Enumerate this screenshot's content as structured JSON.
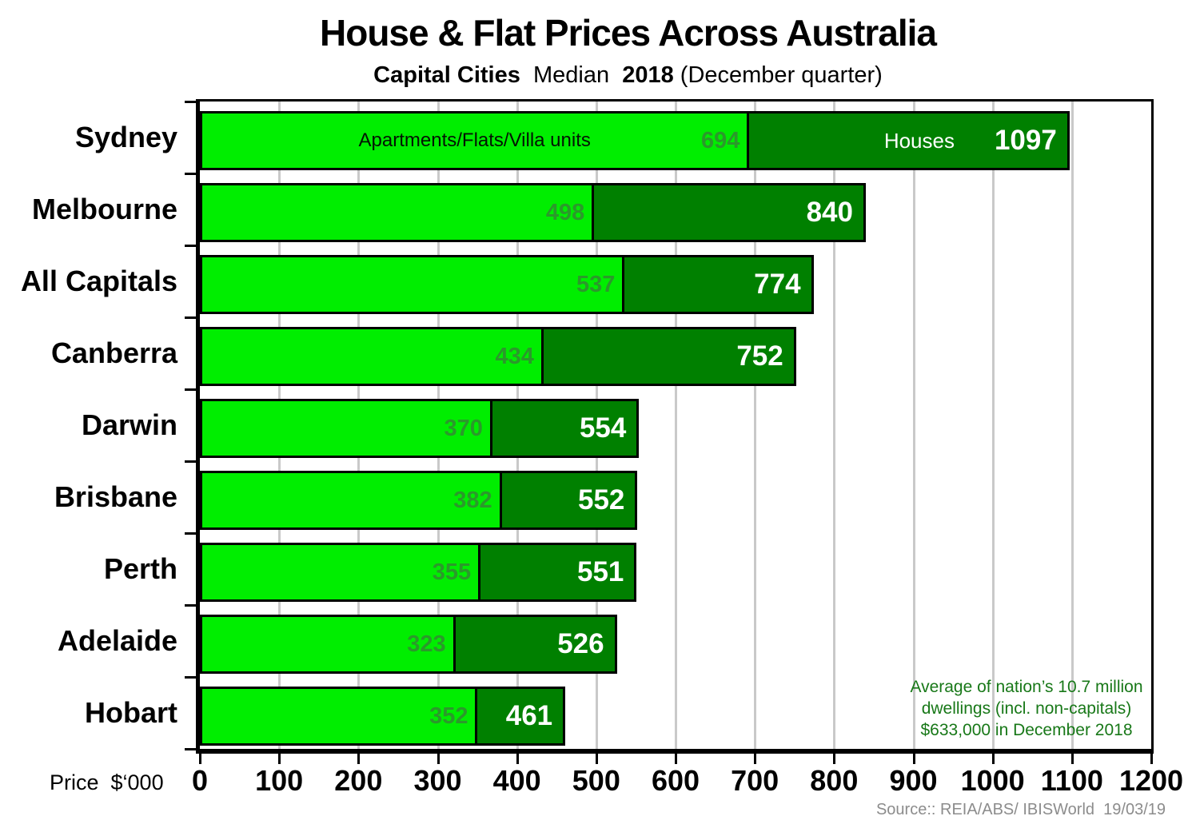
{
  "header": {
    "title": "House & Flat Prices Across Australia",
    "subtitle_parts": [
      {
        "text": "Capital Cities",
        "bold": true
      },
      {
        "text": "  Median  ",
        "bold": false
      },
      {
        "text": "2018",
        "bold": true
      },
      {
        "text": " (December quarter)",
        "bold": false
      }
    ]
  },
  "chart_data": {
    "type": "bar",
    "orientation": "horizontal",
    "title": "House & Flat Prices Across Australia",
    "subtitle": "Capital Cities  Median  2018 (December quarter)",
    "categories": [
      "Sydney",
      "Melbourne",
      "All Capitals",
      "Canberra",
      "Darwin",
      "Brisbane",
      "Perth",
      "Adelaide",
      "Hobart"
    ],
    "series": [
      {
        "name": "Apartments/Flats/Villa units",
        "values": [
          694,
          498,
          537,
          434,
          370,
          382,
          355,
          323,
          352
        ],
        "color": "#00EE00",
        "value_label_color": "#2B992B",
        "name_label_color": "#041404"
      },
      {
        "name": "Houses",
        "values": [
          1097,
          840,
          774,
          752,
          554,
          552,
          551,
          526,
          461
        ],
        "color": "#008000",
        "value_label_color": "#FFFFFF",
        "name_label_color": "#FFFFFF"
      }
    ],
    "xlim": [
      0,
      1200
    ],
    "x_ticks": [
      0,
      100,
      200,
      300,
      400,
      500,
      600,
      700,
      800,
      900,
      1000,
      1100,
      1200
    ],
    "xlabel": "Price  $‘000",
    "grid": "vertical",
    "gridline_color": "#C9C9C9",
    "bar_border_color": "#000000",
    "legend_position": "inside-first-bar"
  },
  "annotation": {
    "lines": [
      "Average of nation’s 10.7 million",
      "dwellings (incl. non-capitals)",
      "$633,000 in December 2018"
    ],
    "color": "#187818"
  },
  "source": "Source:: REIA/ABS/ IBISWorld  19/03/19"
}
